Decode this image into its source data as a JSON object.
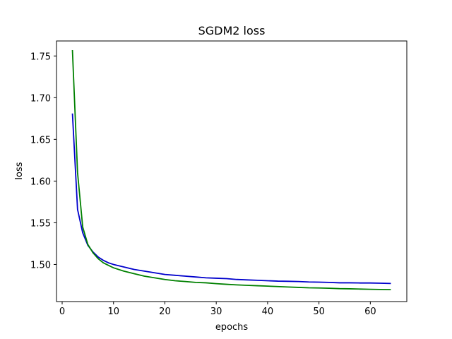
{
  "chart_data": {
    "type": "line",
    "title": "SGDM2 loss",
    "xlabel": "epochs",
    "ylabel": "loss",
    "xlim": [
      -1.1,
      67.1
    ],
    "ylim": [
      1.4555,
      1.768
    ],
    "x_ticks": [
      0,
      10,
      20,
      30,
      40,
      50,
      60
    ],
    "y_ticks": [
      1.5,
      1.55,
      1.6,
      1.65,
      1.7,
      1.75
    ],
    "y_tick_labels": [
      "1.50",
      "1.55",
      "1.60",
      "1.65",
      "1.70",
      "1.75"
    ],
    "grid": false,
    "legend": "none",
    "x": [
      2,
      3,
      4,
      5,
      6,
      7,
      8,
      9,
      10,
      12,
      14,
      16,
      18,
      20,
      22,
      24,
      26,
      28,
      30,
      32,
      34,
      36,
      38,
      40,
      42,
      44,
      46,
      48,
      50,
      52,
      54,
      56,
      58,
      60,
      62,
      64
    ],
    "series": [
      {
        "color": "#0000cc",
        "values": [
          1.681,
          1.566,
          1.538,
          1.523,
          1.515,
          1.509,
          1.505,
          1.502,
          1.5,
          1.497,
          1.494,
          1.492,
          1.49,
          1.488,
          1.487,
          1.486,
          1.485,
          1.484,
          1.4835,
          1.483,
          1.482,
          1.4815,
          1.481,
          1.4805,
          1.48,
          1.4798,
          1.4795,
          1.479,
          1.4788,
          1.4785,
          1.478,
          1.478,
          1.4778,
          1.4778,
          1.4775,
          1.4772
        ]
      },
      {
        "color": "#008000",
        "values": [
          1.757,
          1.61,
          1.545,
          1.524,
          1.514,
          1.507,
          1.502,
          1.499,
          1.496,
          1.492,
          1.489,
          1.486,
          1.484,
          1.482,
          1.4805,
          1.4795,
          1.4785,
          1.478,
          1.477,
          1.4762,
          1.4755,
          1.475,
          1.4745,
          1.474,
          1.4735,
          1.473,
          1.4725,
          1.472,
          1.4718,
          1.4715,
          1.471,
          1.4708,
          1.4705,
          1.4702,
          1.47,
          1.4698
        ]
      }
    ]
  }
}
